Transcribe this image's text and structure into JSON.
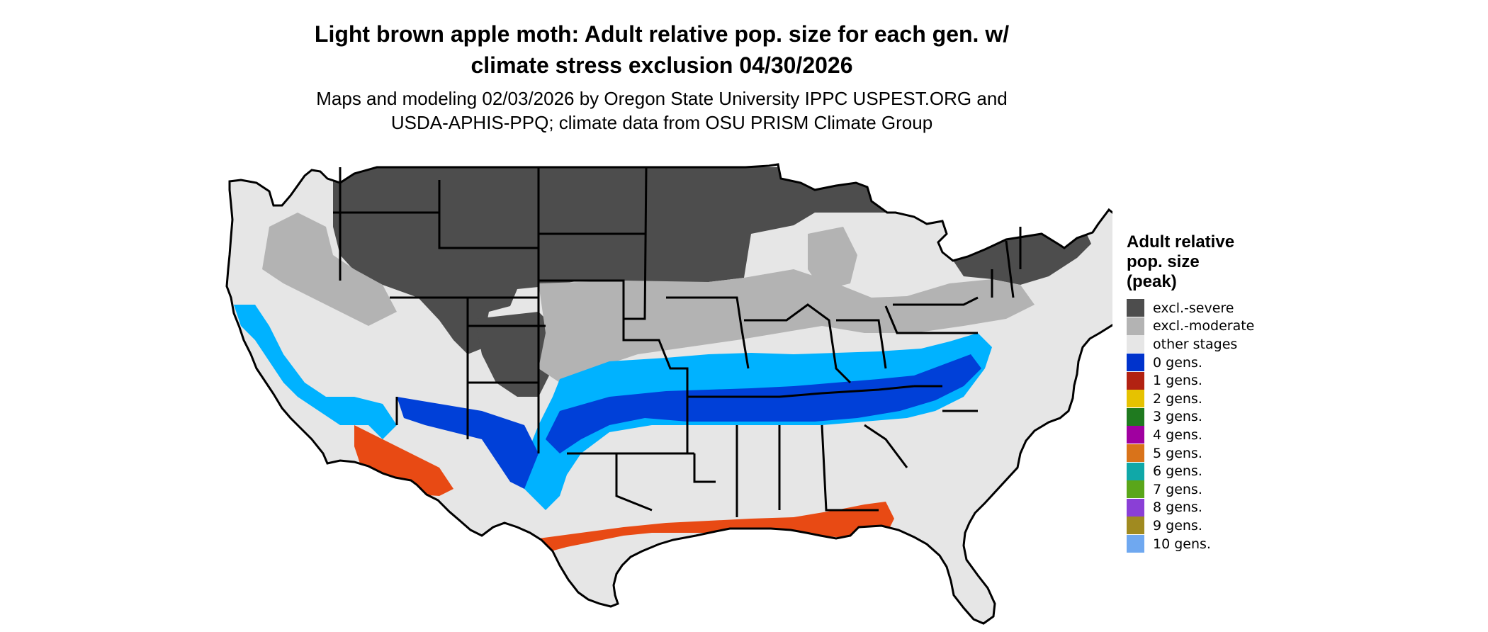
{
  "title_line1": "Light brown apple moth: Adult relative pop. size for each gen. w/",
  "title_line2": "climate stress exclusion 04/30/2026",
  "subtitle_line1": "Maps and modeling 02/03/2026 by Oregon State University IPPC USPEST.ORG and",
  "subtitle_line2": "USDA-APHIS-PPQ; climate data from OSU PRISM Climate Group",
  "legend": {
    "title_line1": "Adult relative",
    "title_line2": "pop. size",
    "title_line3": "(peak)",
    "items": [
      {
        "label": "excl.-severe",
        "color": "#4d4d4d"
      },
      {
        "label": "excl.-moderate",
        "color": "#b3b3b3"
      },
      {
        "label": "other stages",
        "color": "#e6e6e6"
      },
      {
        "label": "0 gens.",
        "color": "#0033cc"
      },
      {
        "label": "1 gens.",
        "color": "#b22212"
      },
      {
        "label": "2 gens.",
        "color": "#e6c200"
      },
      {
        "label": "3 gens.",
        "color": "#1f7a1f"
      },
      {
        "label": "4 gens.",
        "color": "#a000a0"
      },
      {
        "label": "5 gens.",
        "color": "#d9731a"
      },
      {
        "label": "6 gens.",
        "color": "#10a8a8"
      },
      {
        "label": "7 gens.",
        "color": "#5aa61a"
      },
      {
        "label": "8 gens.",
        "color": "#8a3fd6"
      },
      {
        "label": "9 gens.",
        "color": "#a08a20"
      },
      {
        "label": "10 gens.",
        "color": "#6fa8f0"
      }
    ]
  },
  "map_colors": {
    "severe": "#4d4d4d",
    "moderate": "#b3b3b3",
    "other": "#e6e6e6",
    "blue_light": "#00b2ff",
    "blue_dark": "#0040d8",
    "orange": "#e84a14",
    "yellow": "#ffff00"
  }
}
